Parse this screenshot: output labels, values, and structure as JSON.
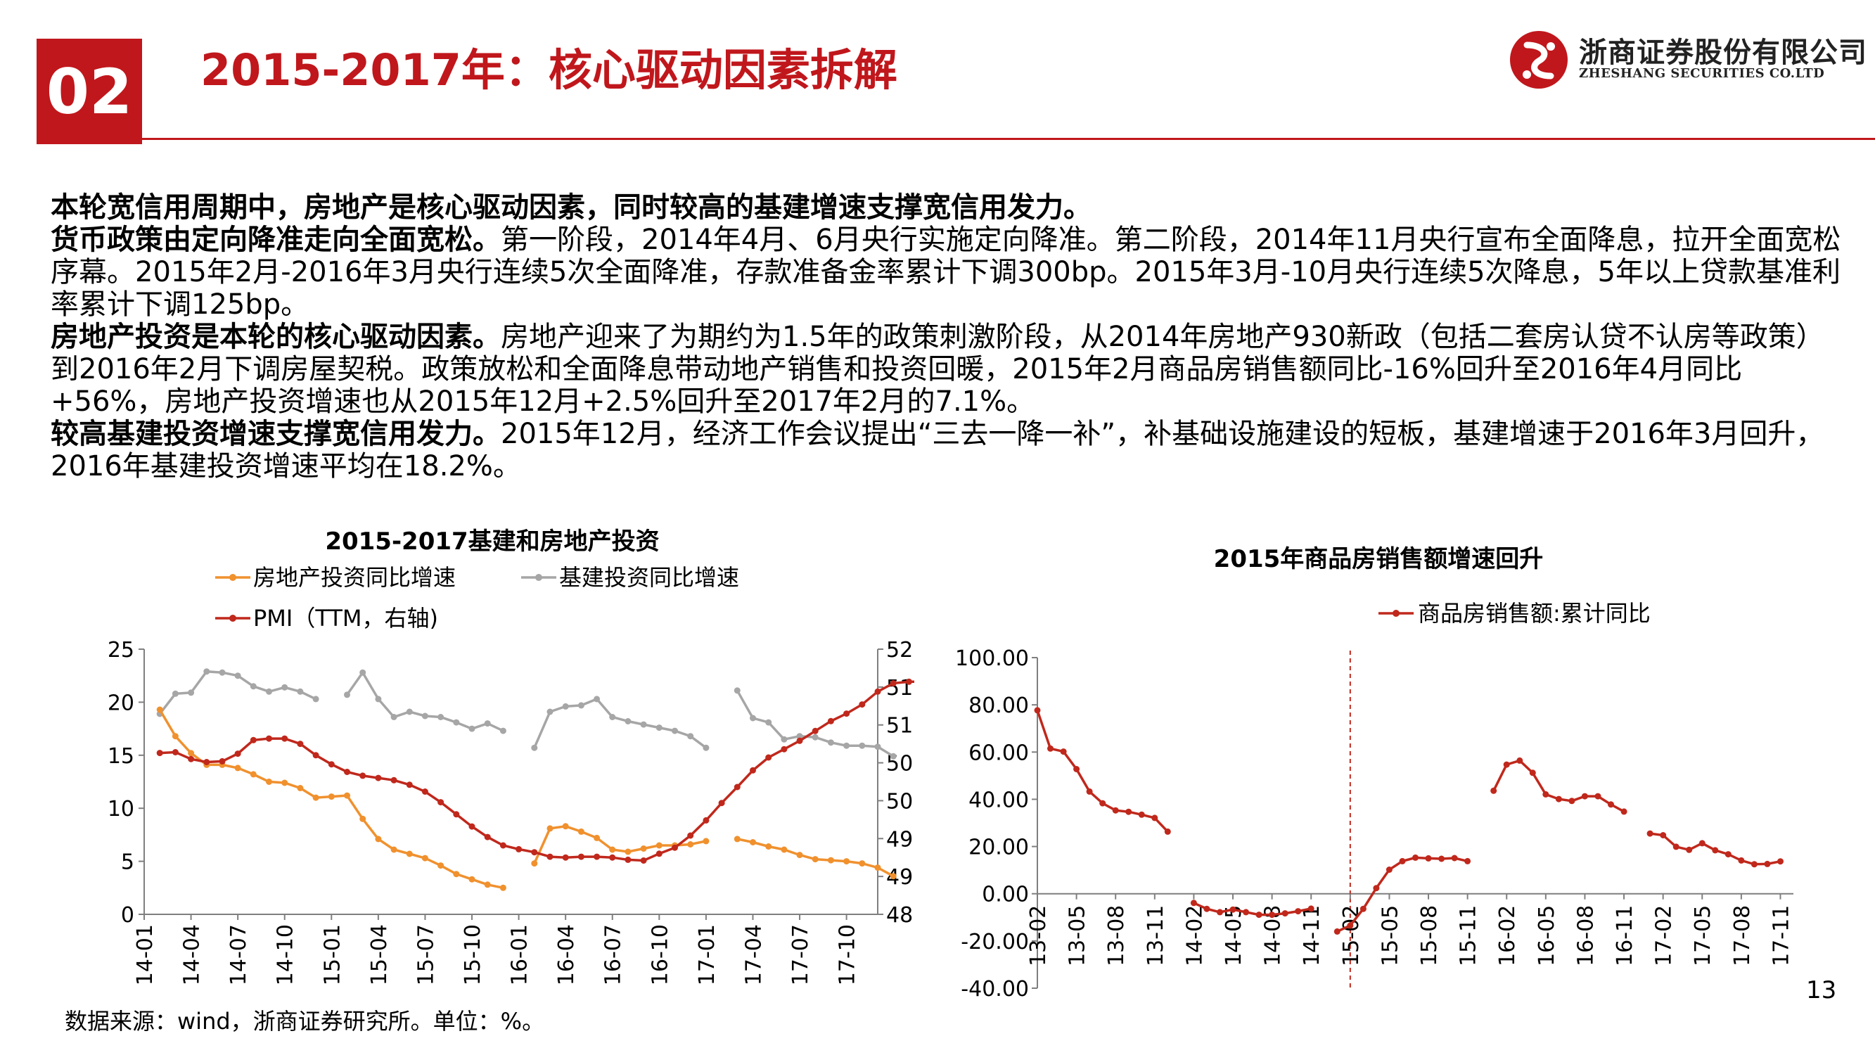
{
  "header": {
    "badge": "02",
    "title": "2015-2017年：核心驱动因素拆解",
    "logo_cn": "浙商证券股份有限公司",
    "logo_en": "ZHESHANG SECURITIES CO.LTD",
    "accent_color": "#C0171C"
  },
  "body": {
    "p1_bold": "本轮宽信用周期中，房地产是核心驱动因素，同时较高的基建增速支撑宽信用发力。",
    "p2_bold": "货币政策由定向降准走向全面宽松。",
    "p2_text": "第一阶段，2014年4月、6月央行实施定向降准。第二阶段，2014年11月央行宣布全面降息，拉开全面宽松序幕。2015年2月-2016年3月央行连续5次全面降准，存款准备金率累计下调300bp。2015年3月-10月央行连续5次降息，5年以上贷款基准利率累计下调125bp。",
    "p3_bold": "房地产投资是本轮的核心驱动因素。",
    "p3_text": "房地产迎来了为期约为1.5年的政策刺激阶段，从2014年房地产930新政（包括二套房认贷不认房等政策）到2016年2月下调房屋契税。政策放松和全面降息带动地产销售和投资回暖，2015年2月商品房销售额同比-16%回升至2016年4月同比+56%，房地产投资增速也从2015年12月+2.5%回升至2017年2月的7.1%。",
    "p4_bold": "较高基建投资增速支撑宽信用发力。",
    "p4_text": "2015年12月，经济工作会议提出“三去一降一补”，补基础设施建设的短板，基建增速于2016年3月回升，2016年基建投资增速平均在18.2%。"
  },
  "footer": {
    "source": "数据来源：wind，浙商证券研究所。单位：%。",
    "page_number": "13"
  },
  "chart_data": [
    {
      "type": "line",
      "title": "2015-2017基建和房地产投资",
      "x_tick_labels": [
        "14-01",
        "14-04",
        "14-07",
        "14-10",
        "15-01",
        "15-04",
        "15-07",
        "15-10",
        "16-01",
        "16-04",
        "16-07",
        "16-10",
        "17-01",
        "17-04",
        "17-07",
        "17-10"
      ],
      "x_start": "2014-02",
      "ylim": [
        0,
        25
      ],
      "y_ticks": [
        "0",
        "5",
        "10",
        "15",
        "20",
        "25"
      ],
      "y2lim": [
        48.5,
        52
      ],
      "y2_ticks": [
        "48.5",
        "49",
        "49.5",
        "50",
        "50.5",
        "51",
        "51.5",
        "52"
      ],
      "grid": false,
      "legend_position": "top",
      "series": [
        {
          "name": "房地产投资同比增速",
          "axis": "left",
          "color": "#F0912E",
          "values": [
            19.3,
            16.8,
            15.2,
            14.1,
            14.1,
            13.8,
            13.2,
            12.5,
            12.4,
            11.9,
            11.0,
            11.1,
            11.2,
            9.0,
            7.1,
            6.1,
            5.7,
            5.3,
            4.6,
            3.8,
            3.3,
            2.8,
            2.5,
            null,
            4.8,
            8.1,
            8.3,
            7.8,
            7.2,
            6.1,
            5.9,
            6.2,
            6.5,
            6.5,
            6.6,
            6.9,
            null,
            7.1,
            6.8,
            6.4,
            6.1,
            5.6,
            5.2,
            5.1,
            5.0,
            4.8,
            4.4,
            3.6
          ]
        },
        {
          "name": "基建投资同比增速",
          "axis": "left",
          "color": "#A6A6A6",
          "values": [
            18.9,
            20.8,
            20.9,
            22.9,
            22.8,
            22.5,
            21.5,
            21.0,
            21.4,
            21.0,
            20.3,
            null,
            20.7,
            22.8,
            20.3,
            18.6,
            19.1,
            18.7,
            18.6,
            18.1,
            17.5,
            18.0,
            17.3,
            null,
            15.7,
            19.1,
            19.6,
            19.7,
            20.3,
            18.6,
            18.2,
            17.9,
            17.6,
            17.3,
            16.8,
            15.7,
            null,
            21.1,
            18.5,
            18.1,
            16.5,
            16.8,
            16.7,
            16.2,
            15.9,
            15.9,
            15.8,
            14.9
          ]
        },
        {
          "name": "PMI（TTM，右轴)",
          "axis": "right",
          "color": "#C0281C",
          "values": [
            50.63,
            50.64,
            50.55,
            50.51,
            50.52,
            50.62,
            50.8,
            50.82,
            50.82,
            50.75,
            50.6,
            50.48,
            50.38,
            50.33,
            50.3,
            50.27,
            50.21,
            50.12,
            49.98,
            49.82,
            49.66,
            49.52,
            49.41,
            49.36,
            49.32,
            49.26,
            49.25,
            49.26,
            49.26,
            49.25,
            49.22,
            49.21,
            49.3,
            49.38,
            49.54,
            49.74,
            49.97,
            50.18,
            50.4,
            50.57,
            50.68,
            50.79,
            50.92,
            51.05,
            51.15,
            51.27,
            51.44,
            51.55,
            51.57,
            51.57,
            51.58
          ]
        }
      ]
    },
    {
      "type": "line",
      "title": "2015年商品房销售额增速回升",
      "x_tick_labels": [
        "13-02",
        "13-05",
        "13-08",
        "13-11",
        "14-02",
        "14-05",
        "14-08",
        "14-11",
        "15-02",
        "15-05",
        "15-08",
        "15-11",
        "16-02",
        "16-05",
        "16-08",
        "16-11",
        "17-02",
        "17-05",
        "17-08",
        "17-11"
      ],
      "x_start": "2013-02",
      "ylim": [
        -40,
        100
      ],
      "y_ticks": [
        "-40.00",
        "-20.00",
        "0.00",
        "20.00",
        "40.00",
        "60.00",
        "80.00",
        "100.00"
      ],
      "marker_line": "15-02",
      "grid": false,
      "legend_position": "top",
      "series": [
        {
          "name": "商品房销售额:累计同比",
          "axis": "left",
          "color": "#C0281C",
          "values": [
            77.7,
            61.5,
            60.2,
            52.8,
            43.3,
            38.3,
            35.3,
            34.7,
            33.5,
            32.1,
            26.3,
            null,
            -3.9,
            -6.4,
            -7.8,
            -6.7,
            -7.8,
            -8.9,
            -8.9,
            -8.3,
            -7.4,
            -6.3,
            null,
            -16.0,
            -13.5,
            -6.4,
            2.4,
            10.2,
            13.8,
            15.3,
            15.0,
            14.8,
            15.1,
            13.8,
            null,
            43.6,
            54.7,
            56.4,
            51.2,
            42.1,
            40.1,
            39.3,
            41.3,
            41.3,
            37.8,
            34.8,
            null,
            25.5,
            24.8,
            19.9,
            18.6,
            21.4,
            18.4,
            16.7,
            14.1,
            12.5,
            12.6,
            13.7
          ]
        }
      ]
    }
  ]
}
